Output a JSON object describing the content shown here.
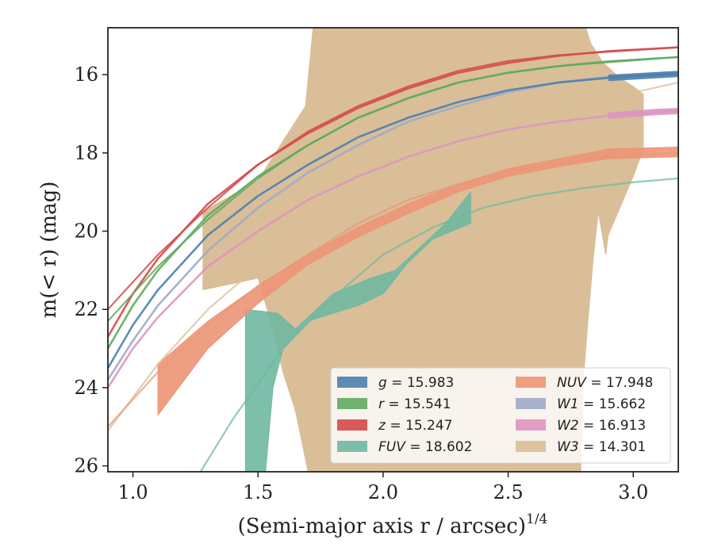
{
  "chart_data": {
    "type": "area",
    "xlabel": "(Semi-major axis r / arcsec)",
    "xlabel_power": "1/4",
    "ylabel": "m(< r) (mag)",
    "xlim": [
      0.9,
      3.18
    ],
    "ylim": [
      26.15,
      14.8
    ],
    "y_inverted": true,
    "grid": false,
    "legend_position": "lower right",
    "x_ticks": [
      1.0,
      1.5,
      2.0,
      2.5,
      3.0
    ],
    "x_tick_labels": [
      "1.0",
      "1.5",
      "2.0",
      "2.5",
      "3.0"
    ],
    "y_ticks": [
      16,
      18,
      20,
      22,
      24,
      26
    ],
    "y_tick_labels": [
      "16",
      "18",
      "20",
      "22",
      "24",
      "26"
    ],
    "series": [
      {
        "id": "W3",
        "legend_text": "W3 = 14.301",
        "color": "#d9be98",
        "kind": "band",
        "upper": [
          [
            1.28,
            19.5
          ],
          [
            1.5,
            18.7
          ],
          [
            1.6,
            17.7
          ],
          [
            1.69,
            16.8
          ],
          [
            1.72,
            14.8
          ],
          [
            2.81,
            14.8
          ],
          [
            2.83,
            15.2
          ],
          [
            2.88,
            15.7
          ],
          [
            2.95,
            16.1
          ],
          [
            3.0,
            16.3
          ],
          [
            3.04,
            16.5
          ]
        ],
        "lower": [
          [
            1.28,
            21.5
          ],
          [
            1.5,
            21.2
          ],
          [
            1.55,
            22.3
          ],
          [
            1.6,
            23.6
          ],
          [
            1.65,
            24.6
          ],
          [
            1.7,
            26.15
          ],
          [
            2.79,
            26.15
          ],
          [
            2.8,
            23.8
          ],
          [
            2.82,
            22.2
          ],
          [
            2.84,
            20.7
          ],
          [
            2.86,
            19.5
          ],
          [
            2.89,
            20.6
          ],
          [
            2.9,
            20.1
          ],
          [
            3.0,
            18.6
          ],
          [
            3.04,
            17.9
          ]
        ],
        "line": [
          [
            0.9,
            25.1
          ],
          [
            1.1,
            23.4
          ],
          [
            1.3,
            22.0
          ],
          [
            1.5,
            20.9
          ],
          [
            1.7,
            19.9
          ],
          [
            1.9,
            19.1
          ],
          [
            2.1,
            18.4
          ],
          [
            2.3,
            17.8
          ],
          [
            2.5,
            17.3
          ],
          [
            2.7,
            16.9
          ],
          [
            2.9,
            16.6
          ],
          [
            3.18,
            16.2
          ]
        ]
      },
      {
        "id": "FUV",
        "legend_text": "FUV = 18.602",
        "color": "#6fb8a1",
        "kind": "band",
        "upper": [
          [
            1.45,
            22.0
          ],
          [
            1.52,
            22.05
          ],
          [
            1.58,
            22.1
          ],
          [
            1.65,
            22.5
          ],
          [
            1.8,
            21.6
          ],
          [
            1.95,
            21.2
          ],
          [
            2.05,
            21.0
          ],
          [
            2.15,
            20.4
          ],
          [
            2.25,
            19.8
          ],
          [
            2.35,
            19.0
          ]
        ],
        "lower": [
          [
            1.45,
            26.15
          ],
          [
            1.53,
            26.15
          ],
          [
            1.56,
            24.0
          ],
          [
            1.6,
            23.0
          ],
          [
            1.7,
            22.3
          ],
          [
            1.8,
            22.1
          ],
          [
            1.9,
            21.9
          ],
          [
            2.0,
            21.6
          ],
          [
            2.1,
            20.8
          ],
          [
            2.2,
            20.2
          ],
          [
            2.35,
            19.8
          ]
        ],
        "line": [
          [
            1.27,
            26.15
          ],
          [
            1.4,
            24.8
          ],
          [
            1.6,
            23.0
          ],
          [
            1.8,
            21.7
          ],
          [
            2.0,
            20.6
          ],
          [
            2.2,
            19.9
          ],
          [
            2.4,
            19.4
          ],
          [
            2.6,
            19.1
          ],
          [
            2.8,
            18.9
          ],
          [
            3.0,
            18.75
          ],
          [
            3.18,
            18.65
          ]
        ]
      },
      {
        "id": "NUV",
        "legend_text": "NUV = 17.948",
        "color": "#ec9575",
        "kind": "band",
        "upper": [
          [
            1.1,
            23.4
          ],
          [
            1.3,
            22.3
          ],
          [
            1.5,
            21.4
          ],
          [
            1.7,
            20.6
          ],
          [
            1.9,
            19.9
          ],
          [
            2.1,
            19.3
          ],
          [
            2.3,
            18.8
          ],
          [
            2.5,
            18.4
          ],
          [
            2.7,
            18.15
          ],
          [
            2.9,
            17.9
          ],
          [
            3.18,
            17.85
          ]
        ],
        "lower": [
          [
            1.1,
            24.7
          ],
          [
            1.3,
            23.0
          ],
          [
            1.5,
            21.85
          ],
          [
            1.7,
            20.85
          ],
          [
            1.9,
            20.15
          ],
          [
            2.1,
            19.55
          ],
          [
            2.3,
            19.0
          ],
          [
            2.5,
            18.6
          ],
          [
            2.7,
            18.35
          ],
          [
            2.9,
            18.15
          ],
          [
            3.18,
            18.1
          ]
        ],
        "line": [
          [
            0.9,
            25.0
          ],
          [
            1.1,
            23.6
          ],
          [
            1.3,
            22.4
          ],
          [
            1.5,
            21.4
          ],
          [
            1.7,
            20.6
          ],
          [
            1.9,
            19.8
          ],
          [
            2.1,
            19.2
          ],
          [
            2.3,
            18.8
          ],
          [
            2.5,
            18.5
          ],
          [
            2.7,
            18.25
          ],
          [
            2.9,
            18.1
          ],
          [
            3.18,
            18.0
          ]
        ]
      },
      {
        "id": "W2",
        "legend_text": "W2 = 16.913",
        "color": "#dd93c1",
        "kind": "line",
        "line": [
          [
            0.9,
            24.0
          ],
          [
            1.0,
            23.0
          ],
          [
            1.1,
            22.2
          ],
          [
            1.3,
            20.9
          ],
          [
            1.5,
            20.0
          ],
          [
            1.7,
            19.2
          ],
          [
            1.9,
            18.6
          ],
          [
            2.1,
            18.1
          ],
          [
            2.3,
            17.7
          ],
          [
            2.5,
            17.4
          ],
          [
            2.7,
            17.2
          ],
          [
            2.9,
            17.05
          ],
          [
            3.1,
            16.95
          ],
          [
            3.18,
            16.93
          ]
        ],
        "thick_from": 2.85
      },
      {
        "id": "W1",
        "legend_text": "W1 = 15.662",
        "color": "#9eaac8",
        "kind": "line",
        "line": [
          [
            0.9,
            23.8
          ],
          [
            1.0,
            22.8
          ],
          [
            1.1,
            21.9
          ],
          [
            1.3,
            20.5
          ],
          [
            1.5,
            19.4
          ],
          [
            1.7,
            18.5
          ],
          [
            1.9,
            17.8
          ],
          [
            2.1,
            17.2
          ],
          [
            2.3,
            16.8
          ],
          [
            2.5,
            16.45
          ],
          [
            2.7,
            16.2
          ],
          [
            2.9,
            16.05
          ],
          [
            3.18,
            15.95
          ]
        ]
      },
      {
        "id": "g",
        "legend_text": "g = 15.983",
        "color": "#4a7fad",
        "kind": "line",
        "line": [
          [
            0.9,
            23.5
          ],
          [
            1.0,
            22.4
          ],
          [
            1.1,
            21.5
          ],
          [
            1.3,
            20.1
          ],
          [
            1.5,
            19.1
          ],
          [
            1.7,
            18.3
          ],
          [
            1.9,
            17.6
          ],
          [
            2.1,
            17.1
          ],
          [
            2.3,
            16.7
          ],
          [
            2.5,
            16.4
          ],
          [
            2.7,
            16.2
          ],
          [
            2.9,
            16.08
          ],
          [
            3.18,
            15.98
          ]
        ],
        "thick_from": 2.9
      },
      {
        "id": "r",
        "legend_text": "r = 15.541",
        "color": "#5faa5f",
        "kind": "line",
        "line": [
          [
            0.9,
            23.0
          ],
          [
            1.0,
            21.9
          ],
          [
            1.1,
            21.0
          ],
          [
            1.3,
            19.6
          ],
          [
            1.5,
            18.6
          ],
          [
            1.7,
            17.8
          ],
          [
            1.9,
            17.1
          ],
          [
            2.1,
            16.6
          ],
          [
            2.3,
            16.2
          ],
          [
            2.5,
            15.95
          ],
          [
            2.7,
            15.78
          ],
          [
            2.9,
            15.66
          ],
          [
            3.18,
            15.55
          ]
        ]
      },
      {
        "id": "z",
        "legend_text": "z = 15.247",
        "color": "#d44a4a",
        "kind": "line",
        "line": [
          [
            0.9,
            22.7
          ],
          [
            1.0,
            21.6
          ],
          [
            1.1,
            20.7
          ],
          [
            1.3,
            19.3
          ],
          [
            1.5,
            18.3
          ],
          [
            1.7,
            17.5
          ],
          [
            1.9,
            16.85
          ],
          [
            2.1,
            16.35
          ],
          [
            2.3,
            15.95
          ],
          [
            2.5,
            15.7
          ],
          [
            2.7,
            15.52
          ],
          [
            2.9,
            15.4
          ],
          [
            3.18,
            15.3
          ]
        ]
      },
      {
        "id": "z_fit",
        "color": "#d44a4a",
        "kind": "thin",
        "line": [
          [
            0.9,
            22.0
          ],
          [
            1.1,
            20.6
          ],
          [
            1.3,
            19.4
          ],
          [
            1.5,
            18.3
          ],
          [
            1.7,
            17.45
          ],
          [
            1.9,
            16.8
          ],
          [
            2.1,
            16.3
          ],
          [
            2.3,
            15.9
          ],
          [
            2.5,
            15.65
          ],
          [
            2.7,
            15.5
          ],
          [
            3.18,
            15.3
          ]
        ]
      },
      {
        "id": "r_fit",
        "color": "#5faa5f",
        "kind": "thin",
        "line": [
          [
            0.9,
            22.3
          ],
          [
            1.1,
            20.9
          ],
          [
            1.3,
            19.7
          ],
          [
            1.5,
            18.65
          ],
          [
            1.7,
            17.8
          ],
          [
            1.9,
            17.1
          ],
          [
            2.1,
            16.6
          ],
          [
            2.3,
            16.2
          ],
          [
            2.5,
            15.95
          ],
          [
            2.7,
            15.78
          ],
          [
            3.18,
            15.55
          ]
        ]
      }
    ],
    "legend": {
      "left_column": [
        {
          "var": "g",
          "value": "15.983",
          "color": "#4a7fad"
        },
        {
          "var": "r",
          "value": "15.541",
          "color": "#5faa5f"
        },
        {
          "var": "z",
          "value": "15.247",
          "color": "#d44a4a"
        },
        {
          "var": "FUV",
          "value": "18.602",
          "color": "#6fb8a1"
        }
      ],
      "right_column": [
        {
          "var": "NUV",
          "value": "17.948",
          "color": "#ec9575"
        },
        {
          "var": "W1",
          "value": "15.662",
          "color": "#9eaac8"
        },
        {
          "var": "W2",
          "value": "16.913",
          "color": "#dd93c1"
        },
        {
          "var": "W3",
          "value": "14.301",
          "color": "#d9be98"
        }
      ]
    }
  }
}
